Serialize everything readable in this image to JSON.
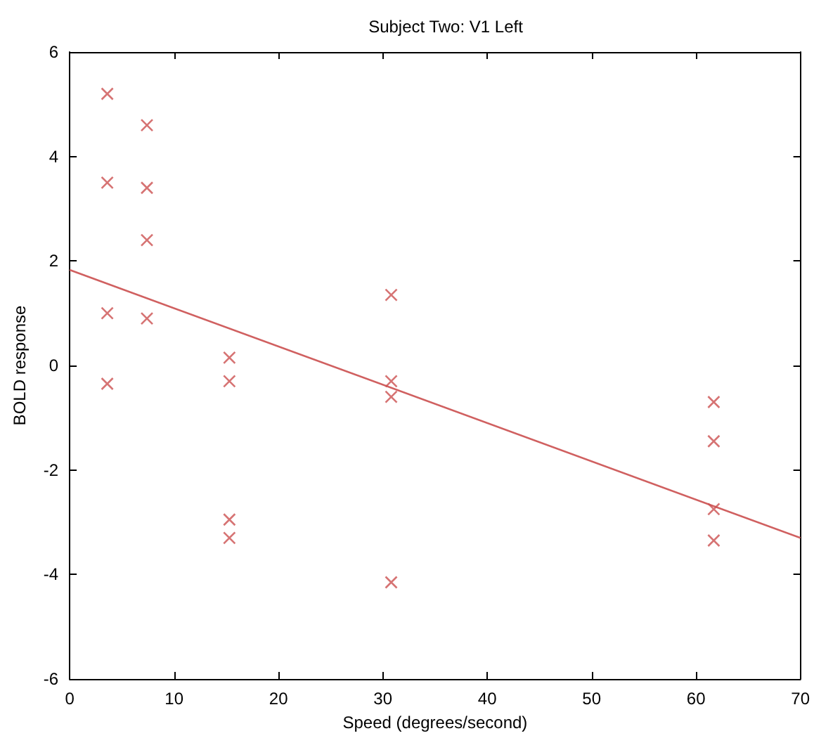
{
  "chart_data": {
    "type": "scatter",
    "title": "Subject Two: V1 Left",
    "xlabel": "Speed (degrees/second)",
    "ylabel": "BOLD response",
    "series": [
      {
        "color": "#cc5050",
        "marker": "cross",
        "x": [
          3.6,
          3.6,
          3.6,
          3.6,
          7.4,
          7.4,
          7.4,
          7.4,
          15.3,
          15.3,
          15.3,
          15.3,
          30.8,
          30.8,
          30.8,
          30.8,
          61.7,
          61.7,
          61.7,
          61.7
        ],
        "values": [
          5.2,
          3.5,
          1.0,
          -0.35,
          4.6,
          3.4,
          2.4,
          0.9,
          0.15,
          -0.3,
          -2.95,
          -3.3,
          1.35,
          -0.3,
          -0.6,
          -4.15,
          -0.7,
          -1.45,
          -2.75,
          -3.35
        ]
      },
      {
        "type": "line",
        "color": "#d06060",
        "marker": "none",
        "x": [
          0,
          70
        ],
        "values": [
          1.83,
          -3.3
        ]
      }
    ],
    "xlim": [
      0,
      70
    ],
    "xticks": [
      0,
      10,
      20,
      30,
      40,
      50,
      60,
      70
    ],
    "ylim": [
      -6,
      6
    ],
    "yticks": [
      -6,
      -4,
      -2,
      0,
      2,
      4,
      6
    ],
    "grid": false
  }
}
